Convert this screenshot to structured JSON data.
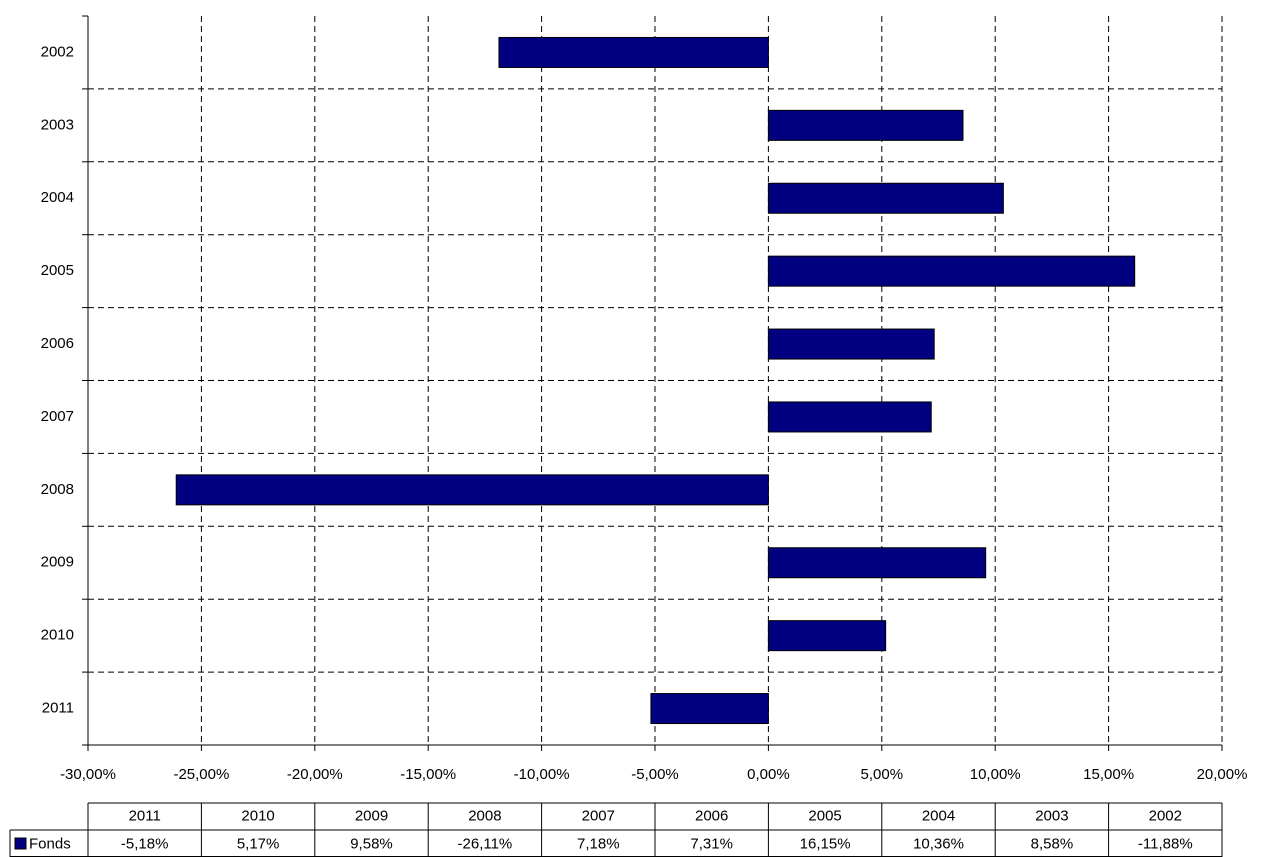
{
  "chart_data": {
    "type": "bar",
    "orientation": "horizontal",
    "title": "",
    "xlabel": "",
    "ylabel": "",
    "categories": [
      "2002",
      "2003",
      "2004",
      "2005",
      "2006",
      "2007",
      "2008",
      "2009",
      "2010",
      "2011"
    ],
    "series": [
      {
        "name": "Fonds",
        "color": "#000080",
        "values": [
          -11.88,
          8.58,
          10.36,
          16.15,
          7.31,
          7.18,
          -26.11,
          9.58,
          5.17,
          -5.18
        ]
      }
    ],
    "xlim": [
      -30,
      20
    ],
    "x_ticks": [
      -30,
      -25,
      -20,
      -15,
      -10,
      -5,
      0,
      5,
      10,
      15,
      20
    ],
    "x_tick_labels": [
      "-30,00%",
      "-25,00%",
      "-20,00%",
      "-15,00%",
      "-10,00%",
      "-5,00%",
      "0,00%",
      "5,00%",
      "10,00%",
      "15,00%",
      "20,00%"
    ],
    "grid": "dashed",
    "data_table": {
      "columns": [
        "2011",
        "2010",
        "2009",
        "2008",
        "2007",
        "2006",
        "2005",
        "2004",
        "2003",
        "2002"
      ],
      "row_label": "Fonds",
      "values": [
        "-5,18%",
        "5,17%",
        "9,58%",
        "-26,11%",
        "7,18%",
        "7,31%",
        "16,15%",
        "10,36%",
        "8,58%",
        "-11,88%"
      ]
    }
  }
}
